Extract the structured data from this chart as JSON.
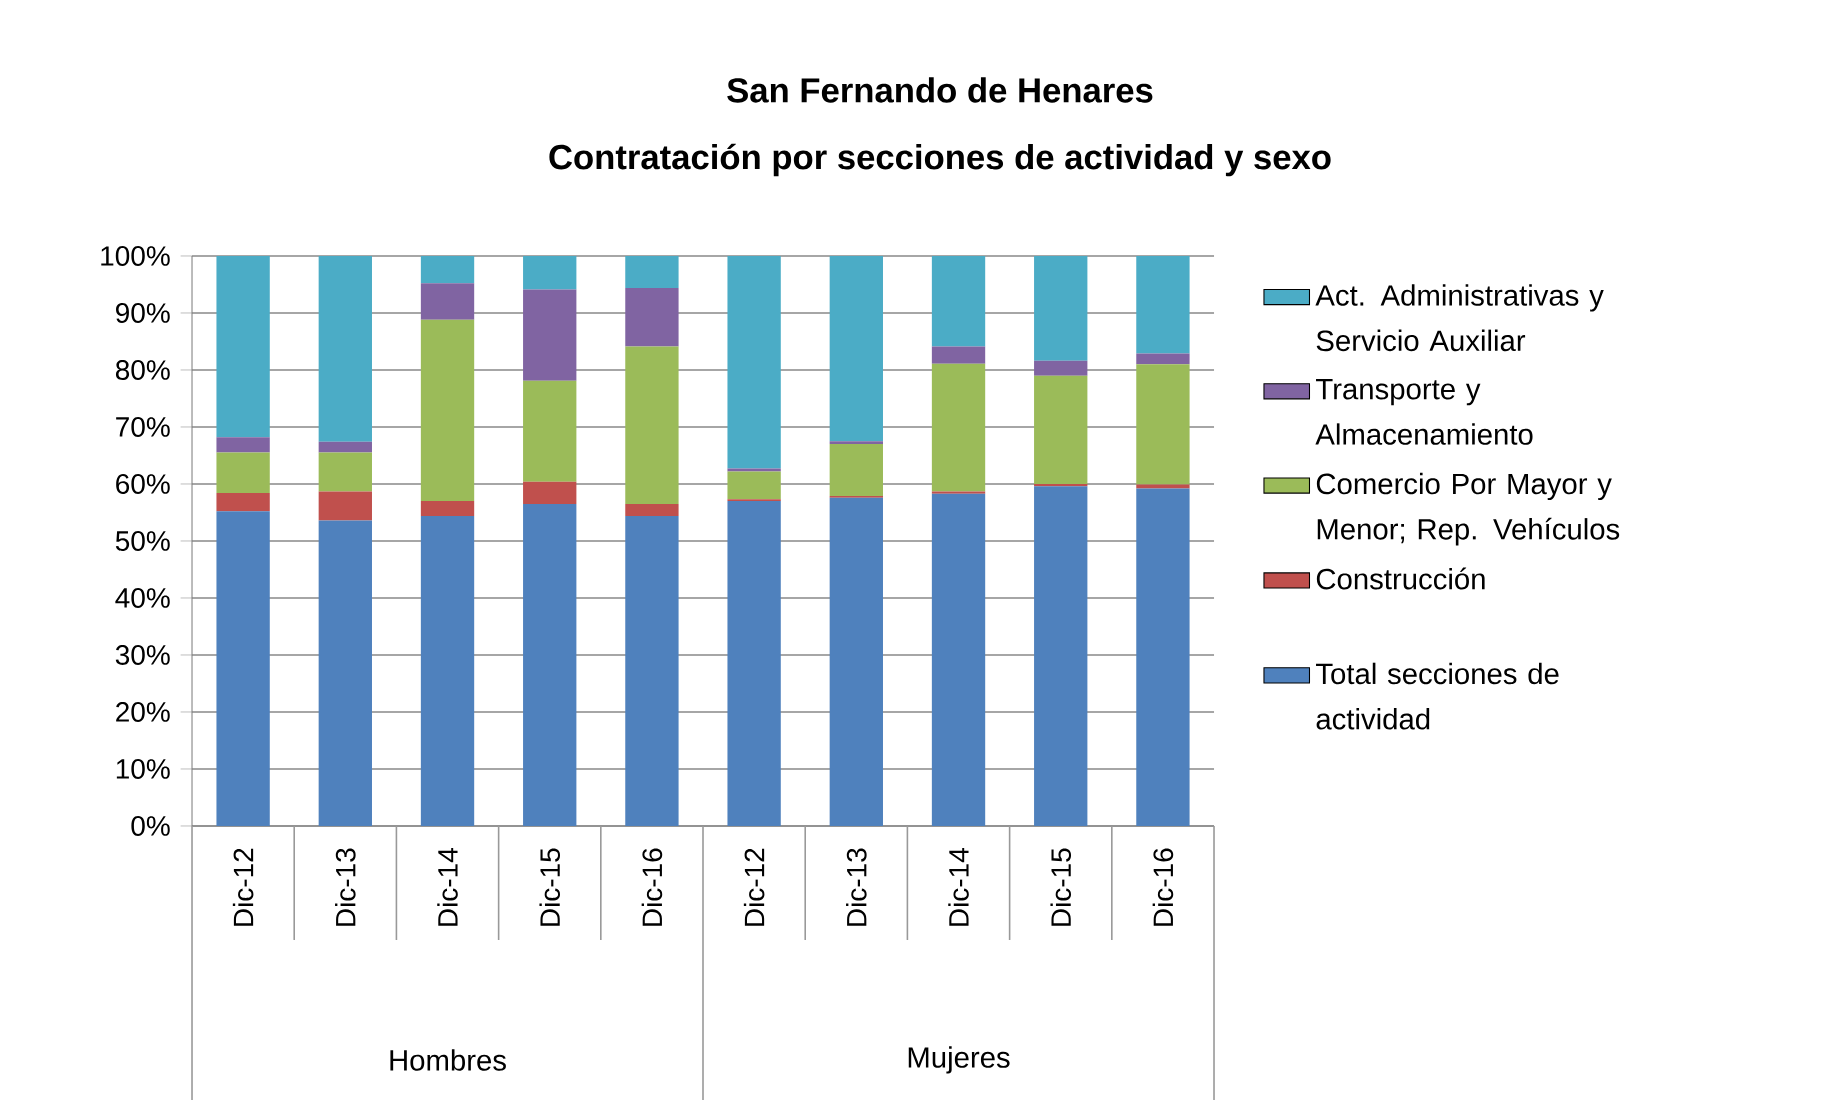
{
  "chart_data": {
    "type": "bar",
    "stacked": true,
    "title": "San Fernando de Henares",
    "subtitle": "Contratación por secciones de actividad y sexo",
    "categories": [
      "Dic-12",
      "Dic-13",
      "Dic-14",
      "Dic-15",
      "Dic-16",
      "Dic-12",
      "Dic-13",
      "Dic-14",
      "Dic-15",
      "Dic-16"
    ],
    "annotations": [
      "Hombres",
      "Mujeres"
    ],
    "series": [
      {
        "name": "Total secciones de actividad",
        "color": "#4f81bd",
        "values": [
          55.2,
          53.6,
          54.4,
          56.5,
          54.4,
          57.0,
          57.6,
          58.3,
          59.6,
          59.2
        ]
      },
      {
        "name": "Construcción",
        "color": "#c0504d",
        "values": [
          3.2,
          5.1,
          2.6,
          3.9,
          2.1,
          0.3,
          0.3,
          0.4,
          0.4,
          0.7
        ]
      },
      {
        "name": "Comercio Por Mayor y Menor; Rep. Vehículos",
        "color": "#9bbb59",
        "values": [
          7.1,
          6.8,
          31.8,
          17.7,
          27.6,
          4.9,
          9.1,
          22.4,
          19.0,
          21.1
        ]
      },
      {
        "name": "Transporte y Almacenamiento",
        "color": "#8064a2",
        "values": [
          2.7,
          1.9,
          6.4,
          16.0,
          10.3,
          0.5,
          0.5,
          3.0,
          2.6,
          1.9
        ]
      },
      {
        "name": "Act. Administrativas y Servicio Auxiliar",
        "color": "#4bacc6",
        "values": [
          31.8,
          32.6,
          4.8,
          5.9,
          5.6,
          37.3,
          32.5,
          15.9,
          18.4,
          17.1
        ]
      }
    ],
    "ylim": [
      0,
      100
    ],
    "yticks": [
      {
        "value": 0,
        "label": "0%"
      },
      {
        "value": 10,
        "label": "10%"
      },
      {
        "value": 20,
        "label": "20%"
      },
      {
        "value": 30,
        "label": "30%"
      },
      {
        "value": 40,
        "label": "40%"
      },
      {
        "value": 50,
        "label": "50%"
      },
      {
        "value": 60,
        "label": "60%"
      },
      {
        "value": 70,
        "label": "70%"
      },
      {
        "value": 80,
        "label": "80%"
      },
      {
        "value": 90,
        "label": "90%"
      },
      {
        "value": 100,
        "label": "100%"
      }
    ],
    "grid": "y",
    "legend": "right"
  }
}
